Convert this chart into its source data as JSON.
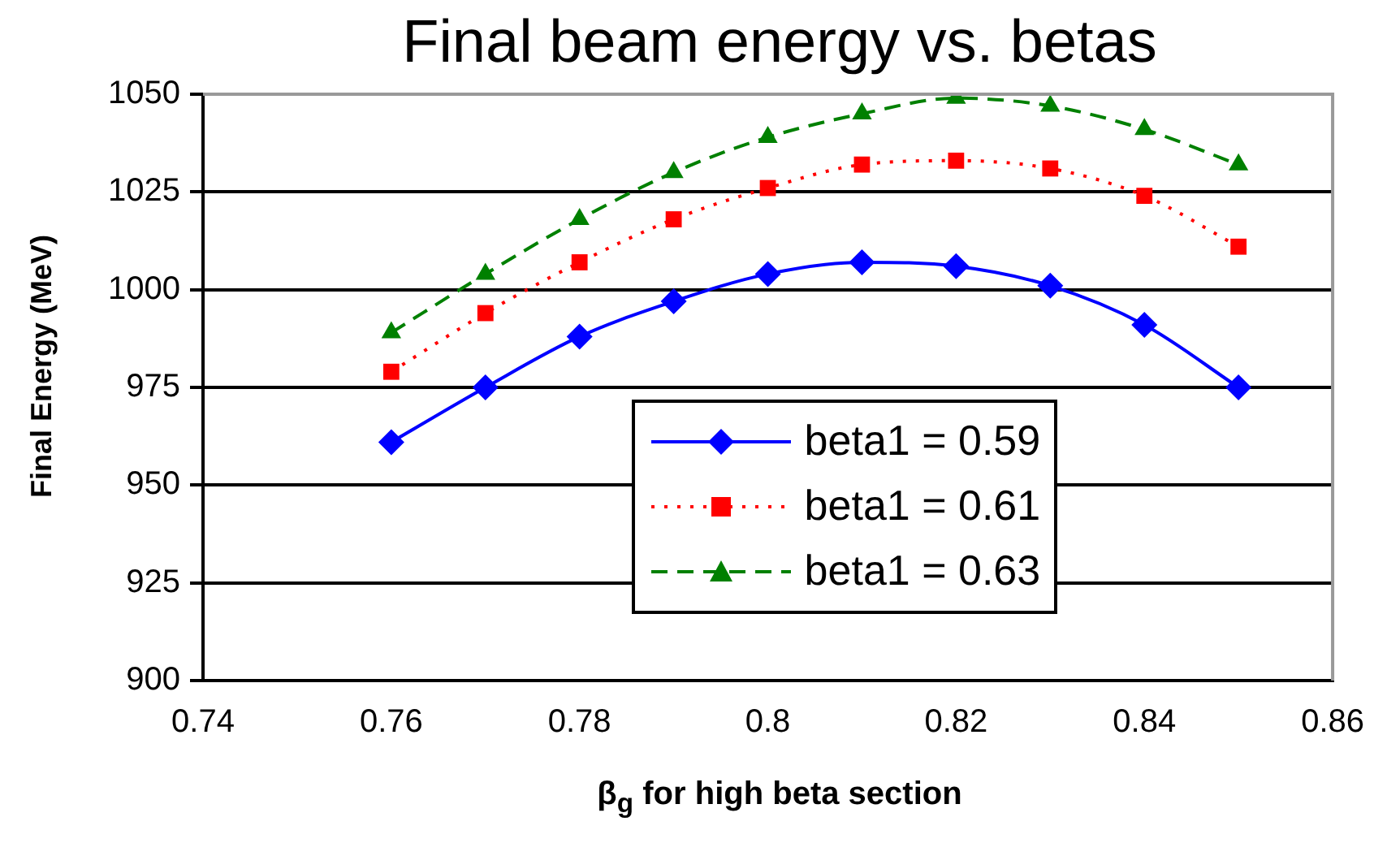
{
  "chart_data": {
    "type": "line",
    "title": "Final beam energy vs. betas",
    "xlabel": "β$_{g}$ for high beta section",
    "ylabel": "Final Energy (MeV)",
    "x": [
      0.76,
      0.77,
      0.78,
      0.79,
      0.8,
      0.81,
      0.82,
      0.83,
      0.84,
      0.85
    ],
    "series": [
      {
        "name": "beta1 = 0.59",
        "color": "#0000ff",
        "marker": "diamond",
        "line_style": "solid",
        "values": [
          961,
          975,
          988,
          997,
          1004,
          1007,
          1006,
          1001,
          991,
          975
        ]
      },
      {
        "name": "beta1 = 0.61",
        "color": "#ff0000",
        "marker": "square",
        "line_style": "dotted",
        "values": [
          979,
          994,
          1007,
          1018,
          1026,
          1032,
          1033,
          1031,
          1024,
          1011
        ]
      },
      {
        "name": "beta1 = 0.63",
        "color": "#008000",
        "marker": "triangle",
        "line_style": "dashed",
        "values": [
          989,
          1004,
          1018,
          1030,
          1039,
          1045,
          1049,
          1047,
          1041,
          1032
        ]
      }
    ],
    "xlim": [
      0.74,
      0.86
    ],
    "xticks": [
      0.74,
      0.76,
      0.78,
      0.8,
      0.82,
      0.84,
      0.86
    ],
    "ylim": [
      900,
      1050
    ],
    "yticks": [
      900,
      925,
      950,
      975,
      1000,
      1025,
      1050
    ],
    "grid": "y",
    "legend": "right"
  }
}
